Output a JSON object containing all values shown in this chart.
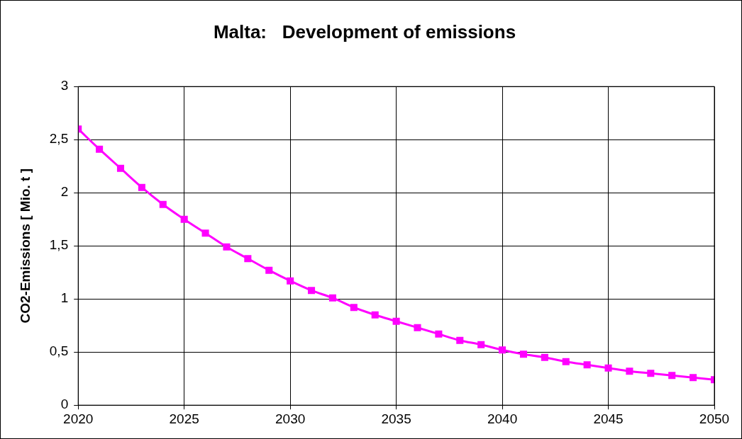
{
  "chart_data": {
    "type": "line",
    "title": "Malta:   Development of emissions",
    "ylabel": "CO2-Emissions [ Mio. t ]",
    "x": [
      2020,
      2021,
      2022,
      2023,
      2024,
      2025,
      2026,
      2027,
      2028,
      2029,
      2030,
      2031,
      2032,
      2033,
      2034,
      2035,
      2036,
      2037,
      2038,
      2039,
      2040,
      2041,
      2042,
      2043,
      2044,
      2045,
      2046,
      2047,
      2048,
      2049,
      2050
    ],
    "series": [
      {
        "color": "#ff00ff",
        "values": [
          2.6,
          2.41,
          2.23,
          2.05,
          1.89,
          1.75,
          1.62,
          1.49,
          1.38,
          1.27,
          1.17,
          1.08,
          1.01,
          0.92,
          0.85,
          0.79,
          0.73,
          0.67,
          0.61,
          0.57,
          0.52,
          0.48,
          0.45,
          0.41,
          0.38,
          0.35,
          0.32,
          0.3,
          0.28,
          0.26,
          0.24
        ]
      }
    ],
    "xlim": [
      2020,
      2050
    ],
    "xticks": [
      2020,
      2025,
      2030,
      2035,
      2040,
      2045,
      2050
    ],
    "ylim": [
      0,
      3
    ],
    "yticks": [
      0,
      {
        "value": 0.5,
        "label": "0,5"
      },
      1,
      {
        "value": 1.5,
        "label": "1,5"
      },
      2,
      {
        "value": 2.5,
        "label": "2,5"
      },
      3
    ],
    "grid": true,
    "legend": false,
    "marker": "square",
    "line_style": "solid"
  }
}
